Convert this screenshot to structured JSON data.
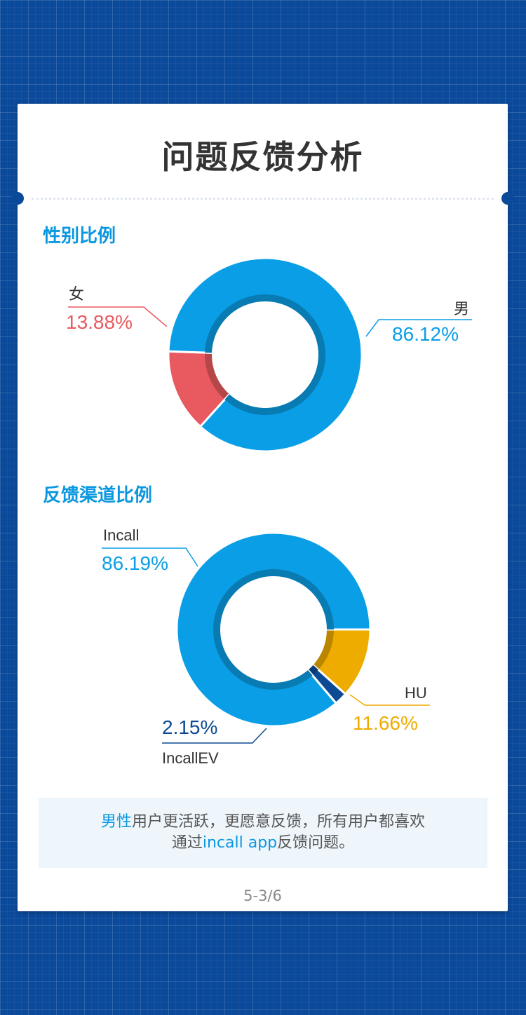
{
  "title": "问题反馈分析",
  "colors": {
    "male": "#0a9ee6",
    "female": "#e85a5f",
    "incall": "#0a9ee6",
    "hu": "#eeac00",
    "incallev": "#0c4a93",
    "accent": "#0a97e0"
  },
  "sections": {
    "gender_title": "性别比例",
    "channel_title": "反馈渠道比例"
  },
  "chart_data": [
    {
      "type": "pie",
      "title": "性别比例",
      "categories": [
        "女",
        "男"
      ],
      "values": [
        13.88,
        86.12
      ],
      "labels": [
        "13.88%",
        "86.12%"
      ],
      "colors": [
        "#e85a5f",
        "#0a9ee6"
      ]
    },
    {
      "type": "pie",
      "title": "反馈渠道比例",
      "categories": [
        "Incall",
        "HU",
        "IncallEV"
      ],
      "values": [
        86.19,
        11.66,
        2.15
      ],
      "labels": [
        "86.19%",
        "11.66%",
        "2.15%"
      ],
      "colors": [
        "#0a9ee6",
        "#eeac00",
        "#0c4a93"
      ]
    }
  ],
  "note": {
    "part1": "男性",
    "part2": "用户更活跃，更愿意反馈，所有用户都喜欢",
    "part3": "通过",
    "part4": "incall app",
    "part5": "反馈问题。"
  },
  "page_number": "5-3/6"
}
